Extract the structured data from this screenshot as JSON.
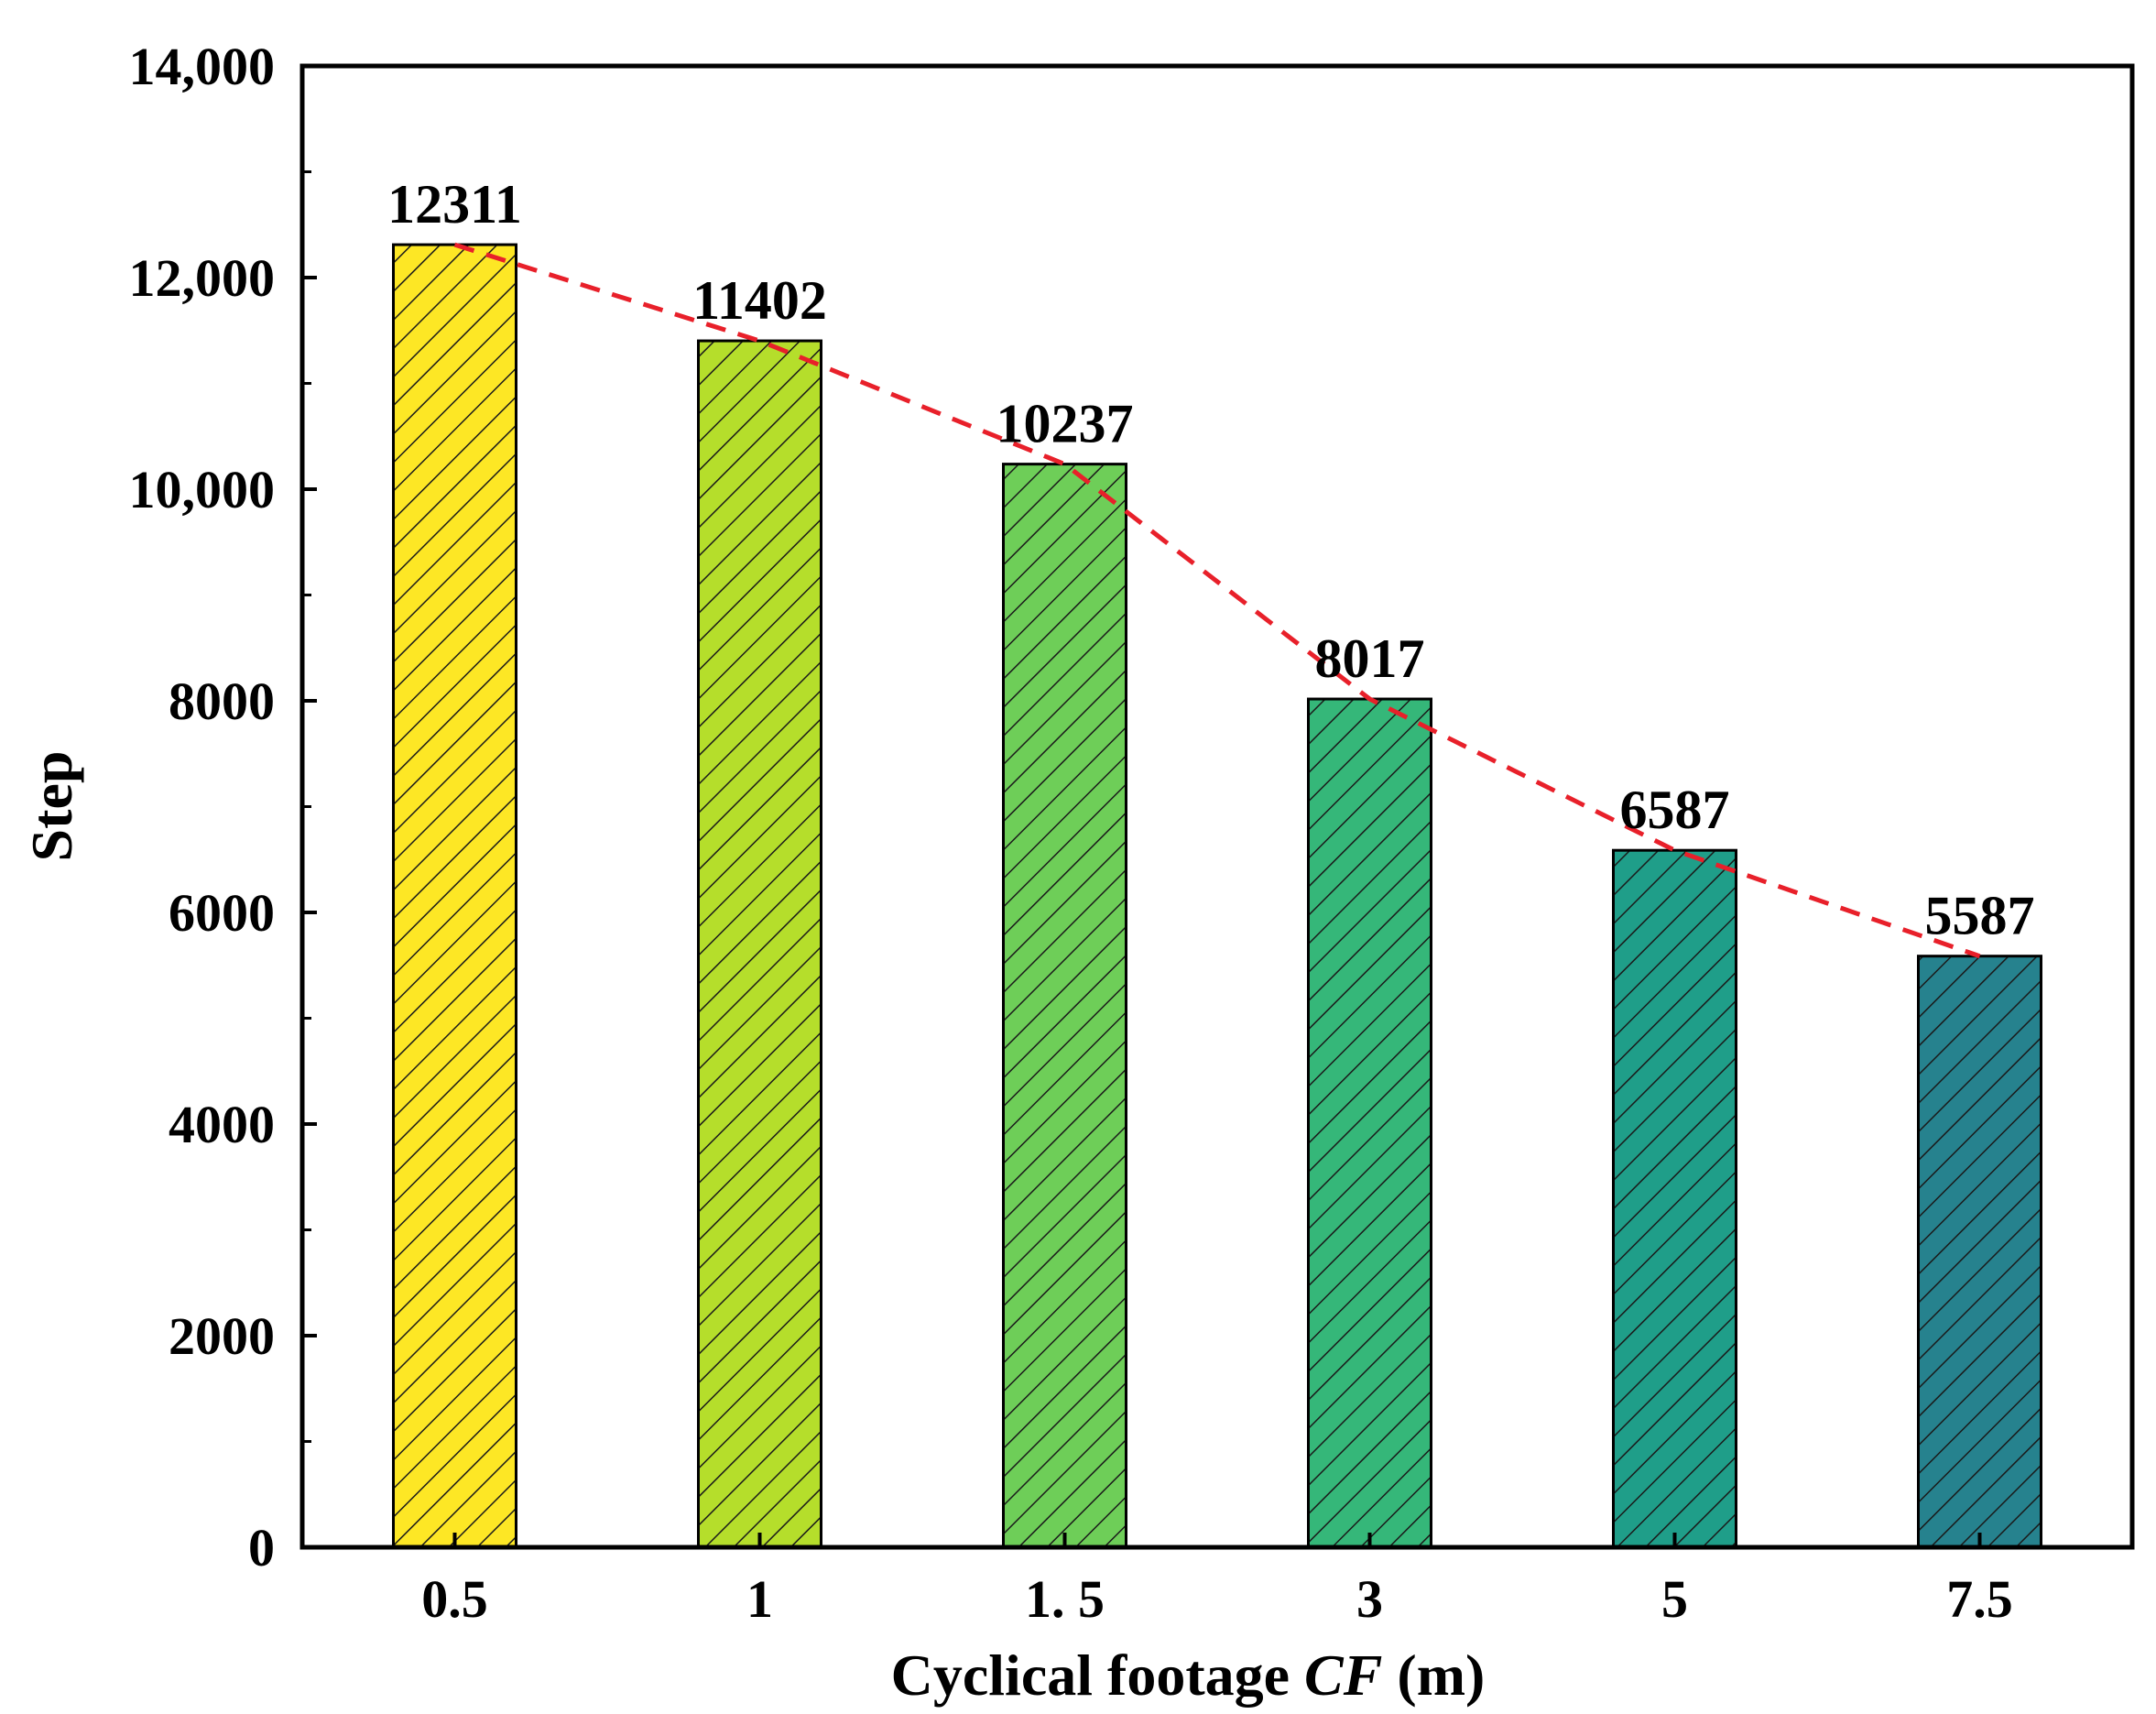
{
  "chart_data": {
    "type": "bar",
    "title": "",
    "categories": [
      "0.5",
      "1",
      "1. 5",
      "3",
      "5",
      "7.5"
    ],
    "values": [
      12311,
      11402,
      10237,
      8017,
      6587,
      5587
    ],
    "data_labels": [
      "12311",
      "11402",
      "10237",
      "8017",
      "6587",
      "5587"
    ],
    "bar_colors": [
      "#fde725",
      "#b5de2b",
      "#6ece58",
      "#35b779",
      "#1f9e89",
      "#26828e"
    ],
    "bar_pattern": "diagonal-hatch",
    "trend_line": {
      "style": "dashed",
      "color": "#e8202a"
    },
    "xlabel": {
      "prefix": "Cyclical footage ",
      "italic": "CF",
      "suffix": " (m)"
    },
    "ylabel": "Step",
    "ylim": [
      0,
      14000
    ],
    "yticks": [
      0,
      2000,
      4000,
      6000,
      8000,
      10000,
      12000,
      14000
    ],
    "ytick_labels": [
      "0",
      "2000",
      "4000",
      "6000",
      "8000",
      "10,000",
      "12,000",
      "14,000"
    ],
    "grid": false,
    "legend": "none"
  }
}
